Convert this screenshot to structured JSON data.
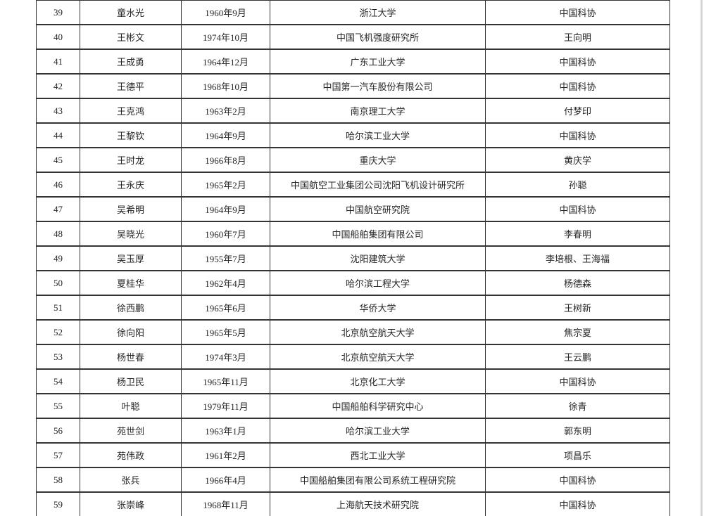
{
  "page": {
    "background_color": "#ffffff",
    "border_color": "#343434",
    "text_color": "#262626",
    "edge_strip_color": "#d8d8d8"
  },
  "table": {
    "rows": [
      {
        "no": "39",
        "name": "童水光",
        "birth": "1960年9月",
        "org": "浙江大学",
        "nominator": "中国科协"
      },
      {
        "no": "40",
        "name": "王彬文",
        "birth": "1974年10月",
        "org": "中国飞机强度研究所",
        "nominator": "王向明"
      },
      {
        "no": "41",
        "name": "王成勇",
        "birth": "1964年12月",
        "org": "广东工业大学",
        "nominator": "中国科协"
      },
      {
        "no": "42",
        "name": "王德平",
        "birth": "1968年10月",
        "org": "中国第一汽车股份有限公司",
        "nominator": "中国科协"
      },
      {
        "no": "43",
        "name": "王克鸿",
        "birth": "1963年2月",
        "org": "南京理工大学",
        "nominator": "付梦印"
      },
      {
        "no": "44",
        "name": "王黎钦",
        "birth": "1964年9月",
        "org": "哈尔滨工业大学",
        "nominator": "中国科协"
      },
      {
        "no": "45",
        "name": "王时龙",
        "birth": "1966年8月",
        "org": "重庆大学",
        "nominator": "黄庆学"
      },
      {
        "no": "46",
        "name": "王永庆",
        "birth": "1965年2月",
        "org": "中国航空工业集团公司沈阳飞机设计研究所",
        "nominator": "孙聪"
      },
      {
        "no": "47",
        "name": "吴希明",
        "birth": "1964年9月",
        "org": "中国航空研究院",
        "nominator": "中国科协"
      },
      {
        "no": "48",
        "name": "吴晓光",
        "birth": "1960年7月",
        "org": "中国船舶集团有限公司",
        "nominator": "李春明"
      },
      {
        "no": "49",
        "name": "吴玉厚",
        "birth": "1955年7月",
        "org": "沈阳建筑大学",
        "nominator": "李培根、王海福"
      },
      {
        "no": "50",
        "name": "夏桂华",
        "birth": "1962年4月",
        "org": "哈尔滨工程大学",
        "nominator": "杨德森"
      },
      {
        "no": "51",
        "name": "徐西鹏",
        "birth": "1965年6月",
        "org": "华侨大学",
        "nominator": "王树新"
      },
      {
        "no": "52",
        "name": "徐向阳",
        "birth": "1965年5月",
        "org": "北京航空航天大学",
        "nominator": "焦宗夏"
      },
      {
        "no": "53",
        "name": "杨世春",
        "birth": "1974年3月",
        "org": "北京航空航天大学",
        "nominator": "王云鹏"
      },
      {
        "no": "54",
        "name": "杨卫民",
        "birth": "1965年11月",
        "org": "北京化工大学",
        "nominator": "中国科协"
      },
      {
        "no": "55",
        "name": "叶聪",
        "birth": "1979年11月",
        "org": "中国船舶科学研究中心",
        "nominator": "徐青"
      },
      {
        "no": "56",
        "name": "苑世剑",
        "birth": "1963年1月",
        "org": "哈尔滨工业大学",
        "nominator": "郭东明"
      },
      {
        "no": "57",
        "name": "苑伟政",
        "birth": "1961年2月",
        "org": "西北工业大学",
        "nominator": "项昌乐"
      },
      {
        "no": "58",
        "name": "张兵",
        "birth": "1966年4月",
        "org": "中国船舶集团有限公司系统工程研究院",
        "nominator": "中国科协"
      },
      {
        "no": "59",
        "name": "张崇峰",
        "birth": "1968年11月",
        "org": "上海航天技术研究院",
        "nominator": "中国科协"
      }
    ]
  }
}
